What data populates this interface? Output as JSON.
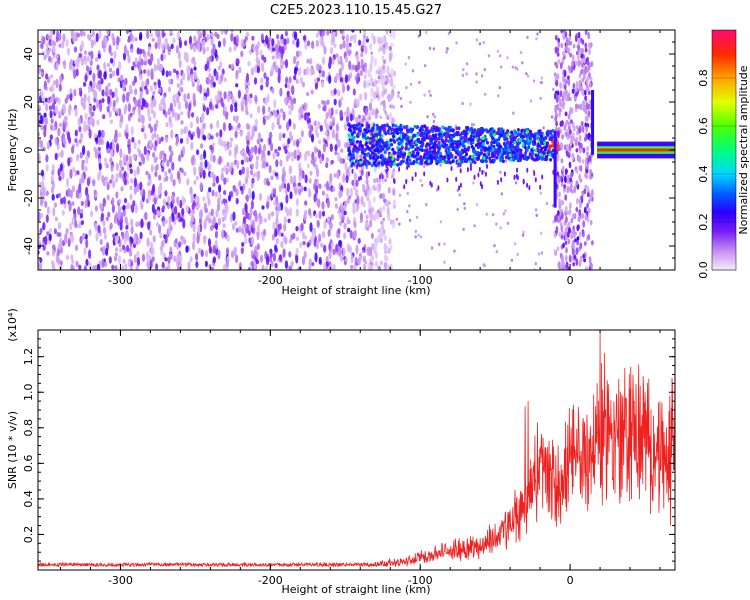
{
  "figure": {
    "title": "C2E5.2023.110.15.45.G27"
  },
  "chart_data": [
    {
      "type": "heatmap",
      "xlabel": "Height of straight line (km)",
      "ylabel": "Frequency (Hz)",
      "xlim": [
        -355,
        70
      ],
      "ylim": [
        -50,
        50
      ],
      "xticks": [
        -300,
        -200,
        -100,
        0
      ],
      "yticks": [
        -40,
        -20,
        0,
        20,
        40
      ],
      "colorbar": {
        "label": "Normalized spectral amplitude",
        "range": [
          0,
          1
        ],
        "ticks": [
          0.0,
          0.2,
          0.4,
          0.6,
          0.8
        ],
        "colors": [
          "#e9d8f5",
          "#a95ce6",
          "#5500ff",
          "#0033ff",
          "#00d7ff",
          "#00ff66",
          "#7dff00",
          "#ffff00",
          "#ff9a00",
          "#ff2a00",
          "#ff0a6e"
        ]
      },
      "regions": [
        {
          "name": "noise",
          "x": [
            -355,
            -125
          ],
          "level": 0.15
        },
        {
          "name": "signal band",
          "x": [
            -148,
            -8
          ],
          "center_hz": 2,
          "level": 0.3
        },
        {
          "name": "burst",
          "x": [
            -10,
            15
          ],
          "level": 0.2
        },
        {
          "name": "carrier",
          "x": [
            18,
            70
          ],
          "center_hz": 0,
          "level": 0.9
        }
      ]
    },
    {
      "type": "line",
      "xlabel": "Height of straight line (km)",
      "ylabel": "SNR (10 * v/v)",
      "yscale_label": "(x10⁴)",
      "xlim": [
        -355,
        70
      ],
      "ylim": [
        0,
        1.35
      ],
      "xticks": [
        -300,
        -200,
        -100,
        0
      ],
      "yticks": [
        0.2,
        0.4,
        0.6,
        0.8,
        1.0,
        1.2
      ],
      "color": "#ee2020",
      "series": [
        {
          "x": [
            -355,
            -330,
            -300,
            -270,
            -240,
            -210,
            -180,
            -150,
            -130,
            -110,
            -100,
            -90,
            -80,
            -70,
            -60,
            -50,
            -40,
            -30,
            -25,
            -20,
            -15,
            -10,
            -5,
            0,
            5,
            10,
            15,
            20,
            25,
            30,
            35,
            40,
            45,
            50,
            55,
            60,
            65,
            70
          ],
          "values": [
            0.03,
            0.03,
            0.03,
            0.03,
            0.03,
            0.03,
            0.03,
            0.03,
            0.04,
            0.05,
            0.08,
            0.1,
            0.12,
            0.14,
            0.15,
            0.2,
            0.28,
            0.4,
            0.55,
            0.65,
            0.6,
            0.5,
            0.58,
            0.65,
            0.7,
            0.72,
            0.75,
            0.8,
            0.9,
            0.85,
            0.8,
            0.9,
            0.85,
            0.8,
            0.75,
            0.7,
            0.65,
            0.9
          ],
          "peaks": [
            [
              -30,
              0.92
            ],
            [
              -28,
              0.95
            ],
            [
              20,
              1.35
            ],
            [
              18,
              1.05
            ],
            [
              25,
              0.95
            ],
            [
              40,
              1.02
            ],
            [
              50,
              1.0
            ],
            [
              60,
              0.95
            ],
            [
              68,
              1.08
            ],
            [
              67,
              0.25
            ]
          ]
        }
      ]
    }
  ]
}
